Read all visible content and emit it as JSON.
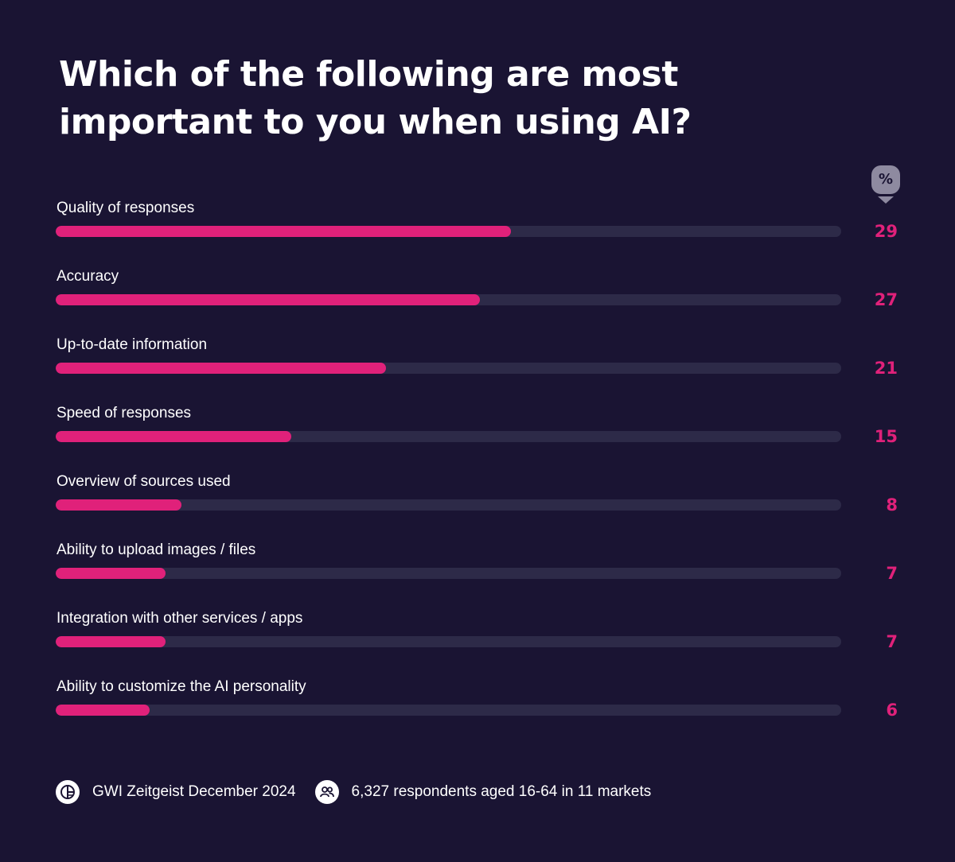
{
  "chart_data": {
    "type": "bar",
    "orientation": "horizontal",
    "title": "Which of the following are most important to you when using AI?",
    "unit": "%",
    "categories": [
      "Quality of responses",
      "Accuracy",
      "Up-to-date information",
      "Speed of responses",
      "Overview of sources used",
      "Ability to upload images / files",
      "Integration with other services / apps",
      "Ability to customize the AI personality"
    ],
    "values": [
      29,
      27,
      21,
      15,
      8,
      7,
      7,
      6
    ],
    "xlim": [
      0,
      50
    ],
    "grid": false,
    "legend": "none"
  },
  "footer": {
    "source_icon": "gwi-logo-icon",
    "source": "GWI Zeitgeist December 2024",
    "respondents_icon": "people-icon",
    "respondents": "6,327 respondents aged 16-64 in 11 markets"
  },
  "colors": {
    "background": "#1a1433",
    "bar": "#e0217a",
    "track": "#2d2a48",
    "value_text": "#e0217a",
    "badge": "#8e8aa0"
  }
}
